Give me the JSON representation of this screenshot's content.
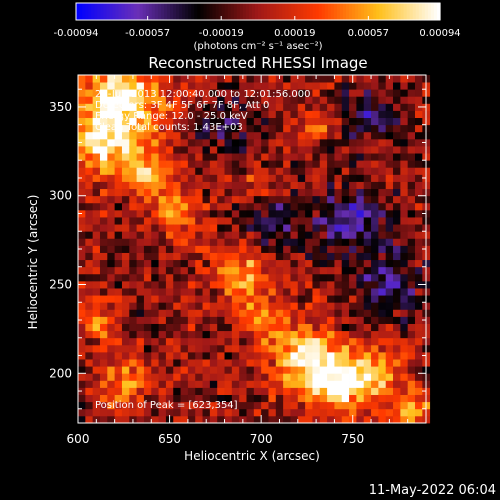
{
  "colorbar": {
    "ticks": [
      "-0.00094",
      "-0.00057",
      "-0.00019",
      "0.00019",
      "0.00057",
      "0.00094"
    ],
    "unit_label": "(photons cm⁻² s⁻¹ asec⁻²)",
    "colors": [
      "#0000ff",
      "#6a2fb8",
      "#000000",
      "#a01818",
      "#ff3a00",
      "#ffbf1a",
      "#ffffff"
    ]
  },
  "chart_data": {
    "type": "heatmap",
    "title": "Reconstructed RHESSI Image",
    "xlabel": "Heliocentric X (arcsec)",
    "ylabel": "Heliocentric Y (arcsec)",
    "xlim": [
      600,
      790
    ],
    "ylim": [
      172,
      368
    ],
    "xticks": [
      "600",
      "650",
      "700",
      "750"
    ],
    "yticks": [
      "200",
      "250",
      "300",
      "350"
    ],
    "annotations": [
      "24-Jun-2013 12:00:40.000 to 12:01:56.000",
      "Detectors: 3F 4F 5F 6F 7F 8F, Att 0",
      "Energy Range: 12.0 - 25.0 keV",
      "Clean    Total counts: 1.43E+03"
    ],
    "peak_label": "Position of Peak = [623,354]",
    "peak": {
      "x": 623,
      "y": 354
    },
    "value_range": [
      -0.00094,
      0.00094
    ],
    "grid_step_arcsec": 4,
    "features": [
      {
        "x": 623,
        "y": 354,
        "sigma": 16,
        "value": 0.00094
      },
      {
        "x": 612,
        "y": 328,
        "sigma": 12,
        "value": 0.0007
      },
      {
        "x": 640,
        "y": 312,
        "sigma": 10,
        "value": 0.0006
      },
      {
        "x": 655,
        "y": 290,
        "sigma": 9,
        "value": 0.0005
      },
      {
        "x": 688,
        "y": 258,
        "sigma": 10,
        "value": 0.0006
      },
      {
        "x": 700,
        "y": 232,
        "sigma": 9,
        "value": 0.0005
      },
      {
        "x": 722,
        "y": 210,
        "sigma": 12,
        "value": 0.0008
      },
      {
        "x": 740,
        "y": 195,
        "sigma": 11,
        "value": 0.0009
      },
      {
        "x": 760,
        "y": 200,
        "sigma": 10,
        "value": 0.00065
      },
      {
        "x": 625,
        "y": 195,
        "sigma": 10,
        "value": 0.0005
      },
      {
        "x": 610,
        "y": 230,
        "sigma": 8,
        "value": 0.0004
      },
      {
        "x": 730,
        "y": 340,
        "sigma": 6,
        "value": 0.0004
      },
      {
        "x": 700,
        "y": 305,
        "sigma": 6,
        "value": 0.00035
      },
      {
        "x": 780,
        "y": 180,
        "sigma": 8,
        "value": 0.0006
      },
      {
        "x": 760,
        "y": 345,
        "sigma": 10,
        "value": -0.0005
      },
      {
        "x": 750,
        "y": 285,
        "sigma": 14,
        "value": -0.00055
      },
      {
        "x": 705,
        "y": 285,
        "sigma": 12,
        "value": -0.0004
      },
      {
        "x": 680,
        "y": 340,
        "sigma": 12,
        "value": -0.00035
      },
      {
        "x": 770,
        "y": 250,
        "sigma": 12,
        "value": -0.0005
      }
    ]
  },
  "footer": {
    "timestamp": "11-May-2022 06:04"
  }
}
